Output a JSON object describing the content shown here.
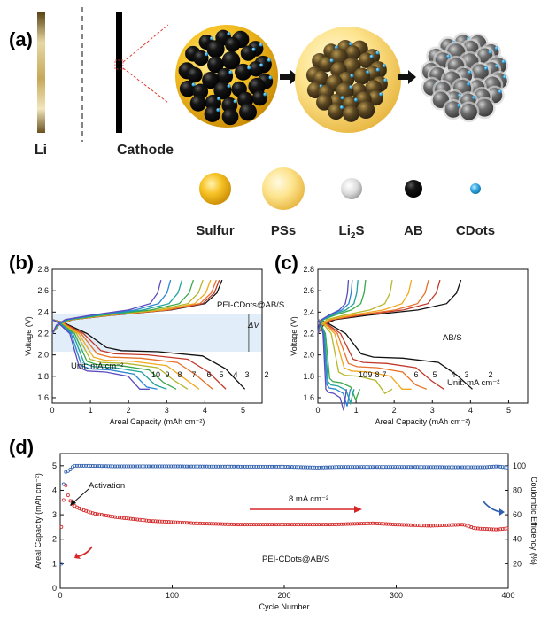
{
  "panel_a": {
    "letter": "(a)",
    "li_label": "Li",
    "cathode_label": "Cathode",
    "legend": [
      {
        "label": "Sulfur",
        "color": "#f2b516"
      },
      {
        "label": "PSs",
        "color": "#fbd766"
      },
      {
        "label_main": "Li",
        "label_sub": "2",
        "label_tail": "S",
        "color": "#d8d8d8"
      },
      {
        "label": "AB",
        "color": "#111111"
      },
      {
        "label": "CDots",
        "color": "#2fa6e0"
      }
    ]
  },
  "panel_b": {
    "letter": "(b)",
    "annotation": "PEI-CDots@AB/S",
    "delta_v": "ΔV",
    "unit": "Unit: mA cm⁻²"
  },
  "panel_c": {
    "letter": "(c)",
    "annotation": "AB/S",
    "unit": "Unit: mA cm⁻²"
  },
  "panel_d": {
    "letter": "(d)",
    "activation": "Activation",
    "rate": "8 mA cm⁻²",
    "sample": "PEI-CDots@AB/S"
  },
  "rate_colors": [
    "#111111",
    "#c0392b",
    "#e8702a",
    "#f2a81d",
    "#b5b82a",
    "#3aa94a",
    "#1fa39a",
    "#2a86d0",
    "#5b4bbf",
    "#a12f8c",
    "#6b2d1e"
  ],
  "chart_data": [
    {
      "type": "line",
      "title": "",
      "xlabel": "Areal Capacity (mAh cm⁻²)",
      "ylabel": "Voltage (V)",
      "xlim": [
        0,
        5.5
      ],
      "ylim": [
        1.55,
        2.8
      ],
      "xticks": [
        0,
        1,
        2,
        3,
        4,
        5
      ],
      "yticks": [
        1.6,
        1.8,
        2.0,
        2.2,
        2.4,
        2.6,
        2.8
      ],
      "highlight_band": [
        2.03,
        2.38
      ],
      "rate_labels": [
        "10",
        "9",
        "8",
        "7",
        "6",
        "5",
        "4",
        "3",
        "2"
      ],
      "series": [
        {
          "name": "2",
          "discharge_capacity": 5.05,
          "charge_capacity": 4.45,
          "plateau": 2.09
        },
        {
          "name": "3",
          "discharge_capacity": 4.55,
          "charge_capacity": 4.38,
          "plateau": 2.06
        },
        {
          "name": "4",
          "discharge_capacity": 4.2,
          "charge_capacity": 4.3,
          "plateau": 2.03
        },
        {
          "name": "5",
          "discharge_capacity": 3.85,
          "charge_capacity": 4.15,
          "plateau": 2.0
        },
        {
          "name": "6",
          "discharge_capacity": 3.55,
          "charge_capacity": 3.95,
          "plateau": 1.98
        },
        {
          "name": "7",
          "discharge_capacity": 3.25,
          "charge_capacity": 3.7,
          "plateau": 1.96
        },
        {
          "name": "8",
          "discharge_capacity": 3.0,
          "charge_capacity": 3.4,
          "plateau": 1.94
        },
        {
          "name": "9",
          "discharge_capacity": 2.75,
          "charge_capacity": 3.1,
          "plateau": 1.92
        },
        {
          "name": "10",
          "discharge_capacity": 2.55,
          "charge_capacity": 2.85,
          "plateau": 1.9
        }
      ]
    },
    {
      "type": "line",
      "title": "",
      "xlabel": "Areal Capacity (mAh cm⁻²)",
      "ylabel": "Voltage (V)",
      "xlim": [
        0,
        5.5
      ],
      "ylim": [
        1.55,
        2.8
      ],
      "xticks": [
        0,
        1,
        2,
        3,
        4,
        5
      ],
      "yticks": [
        1.6,
        1.8,
        2.0,
        2.2,
        2.4,
        2.6,
        2.8
      ],
      "rate_labels": [
        "10",
        "9",
        "8",
        "7",
        "6",
        "5",
        "4",
        "3",
        "2"
      ],
      "series": [
        {
          "name": "2",
          "discharge_capacity": 4.05,
          "charge_capacity": 3.75,
          "plateau": 2.03
        },
        {
          "name": "3",
          "discharge_capacity": 3.3,
          "charge_capacity": 3.2,
          "plateau": 1.98
        },
        {
          "name": "4",
          "discharge_capacity": 2.85,
          "charge_capacity": 2.9,
          "plateau": 1.94
        },
        {
          "name": "5",
          "discharge_capacity": 2.45,
          "charge_capacity": 2.45,
          "plateau": 1.9
        },
        {
          "name": "6",
          "discharge_capacity": 1.95,
          "charge_capacity": 1.95,
          "plateau": 1.86
        },
        {
          "name": "7",
          "discharge_capacity": 1.1,
          "charge_capacity": 1.25,
          "plateau": 1.8
        },
        {
          "name": "8",
          "discharge_capacity": 0.95,
          "charge_capacity": 1.05,
          "plateau": 1.77
        },
        {
          "name": "9",
          "discharge_capacity": 0.85,
          "charge_capacity": 0.9,
          "plateau": 1.74
        },
        {
          "name": "10",
          "discharge_capacity": 0.75,
          "charge_capacity": 0.8,
          "plateau": 1.7
        }
      ]
    },
    {
      "type": "scatter",
      "title": "",
      "xlabel": "Cycle Number",
      "ylabel": "Areal Capacity (mAh cm⁻²)",
      "y2label": "Coulombic Efficiency (%)",
      "xlim": [
        0,
        400
      ],
      "ylim": [
        0,
        5.5
      ],
      "y2lim": [
        0,
        110
      ],
      "xticks": [
        0,
        100,
        200,
        300,
        400
      ],
      "yticks": [
        0,
        1,
        2,
        3,
        4,
        5
      ],
      "y2ticks": [
        20,
        40,
        60,
        80,
        100
      ],
      "series": [
        {
          "name": "Areal capacity",
          "axis": "left",
          "color": "#d62728",
          "x": [
            1,
            3,
            5,
            7,
            10,
            15,
            20,
            30,
            50,
            80,
            120,
            160,
            200,
            240,
            280,
            300,
            330,
            360,
            370,
            380,
            390,
            400
          ],
          "y": [
            2.5,
            3.6,
            4.2,
            3.8,
            3.45,
            3.3,
            3.2,
            3.05,
            2.9,
            2.75,
            2.65,
            2.6,
            2.6,
            2.6,
            2.65,
            2.6,
            2.55,
            2.6,
            2.45,
            2.42,
            2.4,
            2.45
          ]
        },
        {
          "name": "Coulombic efficiency",
          "axis": "right",
          "color": "#2f5fae",
          "x": [
            1,
            3,
            5,
            8,
            12,
            20,
            50,
            100,
            150,
            200,
            230,
            250,
            300,
            350,
            380,
            390,
            400
          ],
          "y": [
            20,
            85,
            95,
            96,
            100,
            100,
            99.5,
            99.5,
            99.3,
            99.2,
            98.5,
            99,
            99,
            98.8,
            98.8,
            99.5,
            98.5
          ]
        }
      ]
    }
  ]
}
